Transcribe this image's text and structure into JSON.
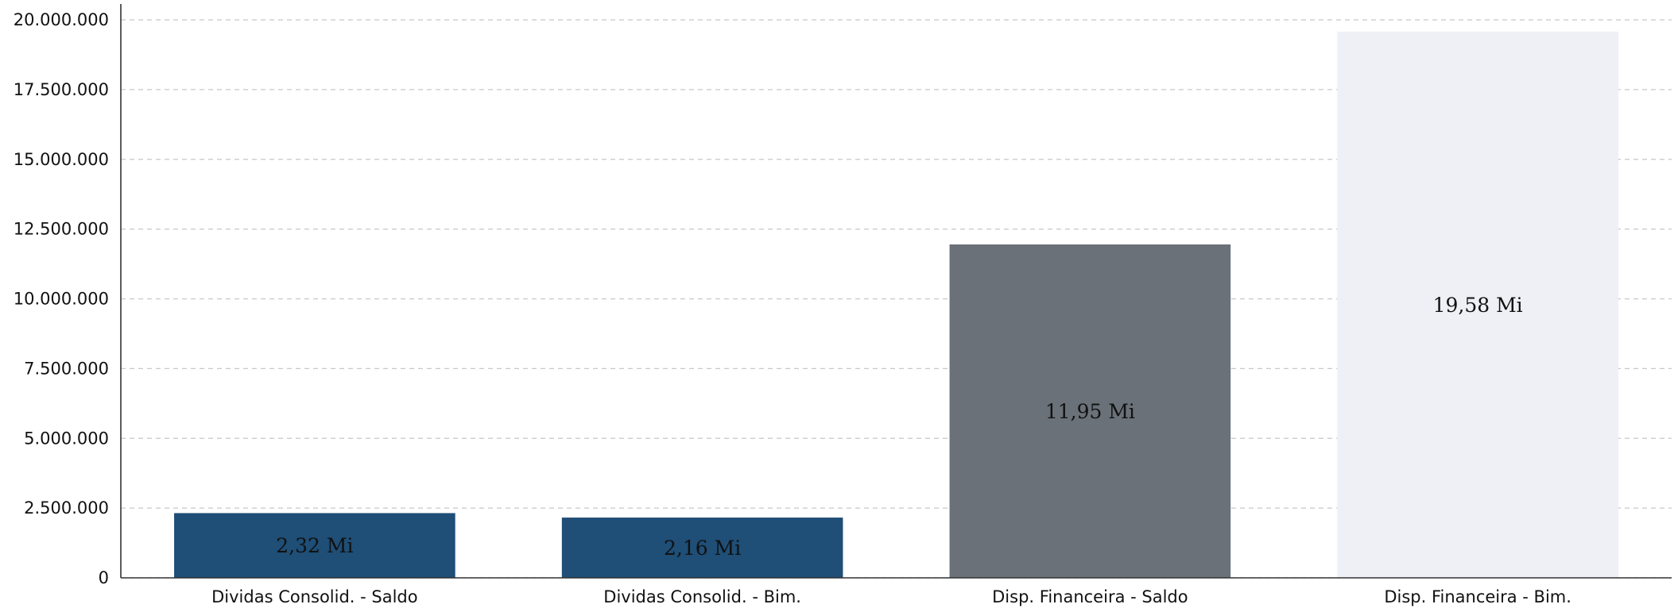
{
  "chart_data": {
    "type": "bar",
    "title": "",
    "xlabel": "",
    "ylabel": "",
    "categories": [
      "Dividas Consolid. - Saldo",
      "Dividas Consolid. - Bim.",
      "Disp. Financeira - Saldo",
      "Disp. Financeira - Bim."
    ],
    "values": [
      2320000,
      2160000,
      11950000,
      19580000
    ],
    "data_labels": [
      "2,32 Mi",
      "2,16 Mi",
      "11,95 Mi",
      "19,58 Mi"
    ],
    "bar_colors": [
      "#1f4e76",
      "#1f4e76",
      "#6b7179",
      "#eef0f5"
    ],
    "ylim": [
      0,
      20000000
    ],
    "yticks": [
      0,
      2500000,
      5000000,
      7500000,
      10000000,
      12500000,
      15000000,
      17500000,
      20000000
    ],
    "ytick_labels": [
      "0",
      "2.500.000",
      "5.000.000",
      "7.500.000",
      "10.000.000",
      "12.500.000",
      "15.000.000",
      "17.500.000",
      "20.000.000"
    ],
    "grid": true,
    "legend": "none"
  }
}
